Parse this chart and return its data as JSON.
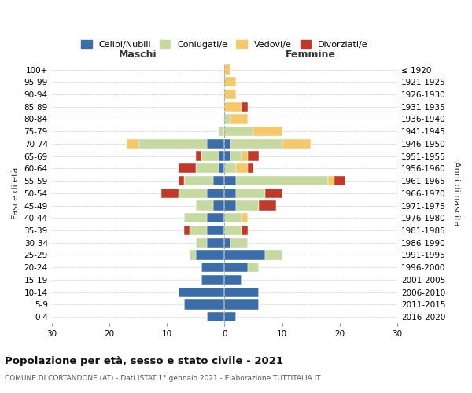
{
  "age_groups": [
    "0-4",
    "5-9",
    "10-14",
    "15-19",
    "20-24",
    "25-29",
    "30-34",
    "35-39",
    "40-44",
    "45-49",
    "50-54",
    "55-59",
    "60-64",
    "65-69",
    "70-74",
    "75-79",
    "80-84",
    "85-89",
    "90-94",
    "95-99",
    "100+"
  ],
  "birth_years": [
    "2016-2020",
    "2011-2015",
    "2006-2010",
    "2001-2005",
    "1996-2000",
    "1991-1995",
    "1986-1990",
    "1981-1985",
    "1976-1980",
    "1971-1975",
    "1966-1970",
    "1961-1965",
    "1956-1960",
    "1951-1955",
    "1946-1950",
    "1941-1945",
    "1936-1940",
    "1931-1935",
    "1926-1930",
    "1921-1925",
    "≤ 1920"
  ],
  "male": {
    "celibi": [
      3,
      7,
      8,
      4,
      4,
      5,
      3,
      3,
      3,
      2,
      3,
      2,
      1,
      1,
      3,
      0,
      0,
      0,
      0,
      0,
      0
    ],
    "coniugati": [
      0,
      0,
      0,
      0,
      0,
      1,
      2,
      3,
      4,
      3,
      5,
      5,
      4,
      3,
      12,
      1,
      0,
      0,
      0,
      0,
      0
    ],
    "vedovi": [
      0,
      0,
      0,
      0,
      0,
      0,
      0,
      0,
      0,
      0,
      0,
      0,
      0,
      0,
      2,
      0,
      0,
      0,
      0,
      0,
      0
    ],
    "divorziati": [
      0,
      0,
      0,
      0,
      0,
      0,
      0,
      1,
      0,
      0,
      3,
      1,
      3,
      1,
      0,
      0,
      0,
      0,
      0,
      0,
      0
    ]
  },
  "female": {
    "nubili": [
      2,
      6,
      6,
      3,
      4,
      7,
      1,
      0,
      0,
      2,
      2,
      2,
      0,
      1,
      1,
      0,
      0,
      0,
      0,
      0,
      0
    ],
    "coniugate": [
      0,
      0,
      0,
      0,
      2,
      3,
      3,
      3,
      3,
      4,
      5,
      16,
      2,
      2,
      9,
      5,
      1,
      0,
      0,
      0,
      0
    ],
    "vedove": [
      0,
      0,
      0,
      0,
      0,
      0,
      0,
      0,
      1,
      0,
      0,
      1,
      2,
      1,
      5,
      5,
      3,
      3,
      2,
      2,
      1
    ],
    "divorziate": [
      0,
      0,
      0,
      0,
      0,
      0,
      0,
      1,
      0,
      3,
      3,
      2,
      1,
      2,
      0,
      0,
      0,
      1,
      0,
      0,
      0
    ]
  },
  "colors": {
    "celibi": "#3b6ea8",
    "coniugati": "#c5d9a0",
    "vedovi": "#f5c96a",
    "divorziati": "#c0392b"
  },
  "xlim": 30,
  "title": "Popolazione per età, sesso e stato civile - 2021",
  "subtitle": "COMUNE DI CORTANDONE (AT) - Dati ISTAT 1° gennaio 2021 - Elaborazione TUTTITALIA.IT",
  "ylabel_left": "Fasce di età",
  "ylabel_right": "Anni di nascita",
  "xlabel_left": "Maschi",
  "xlabel_right": "Femmine",
  "legend_labels": [
    "Celibi/Nubili",
    "Coniugati/e",
    "Vedovi/e",
    "Divorziati/e"
  ],
  "bg_color": "#ffffff",
  "grid_color": "#cccccc"
}
